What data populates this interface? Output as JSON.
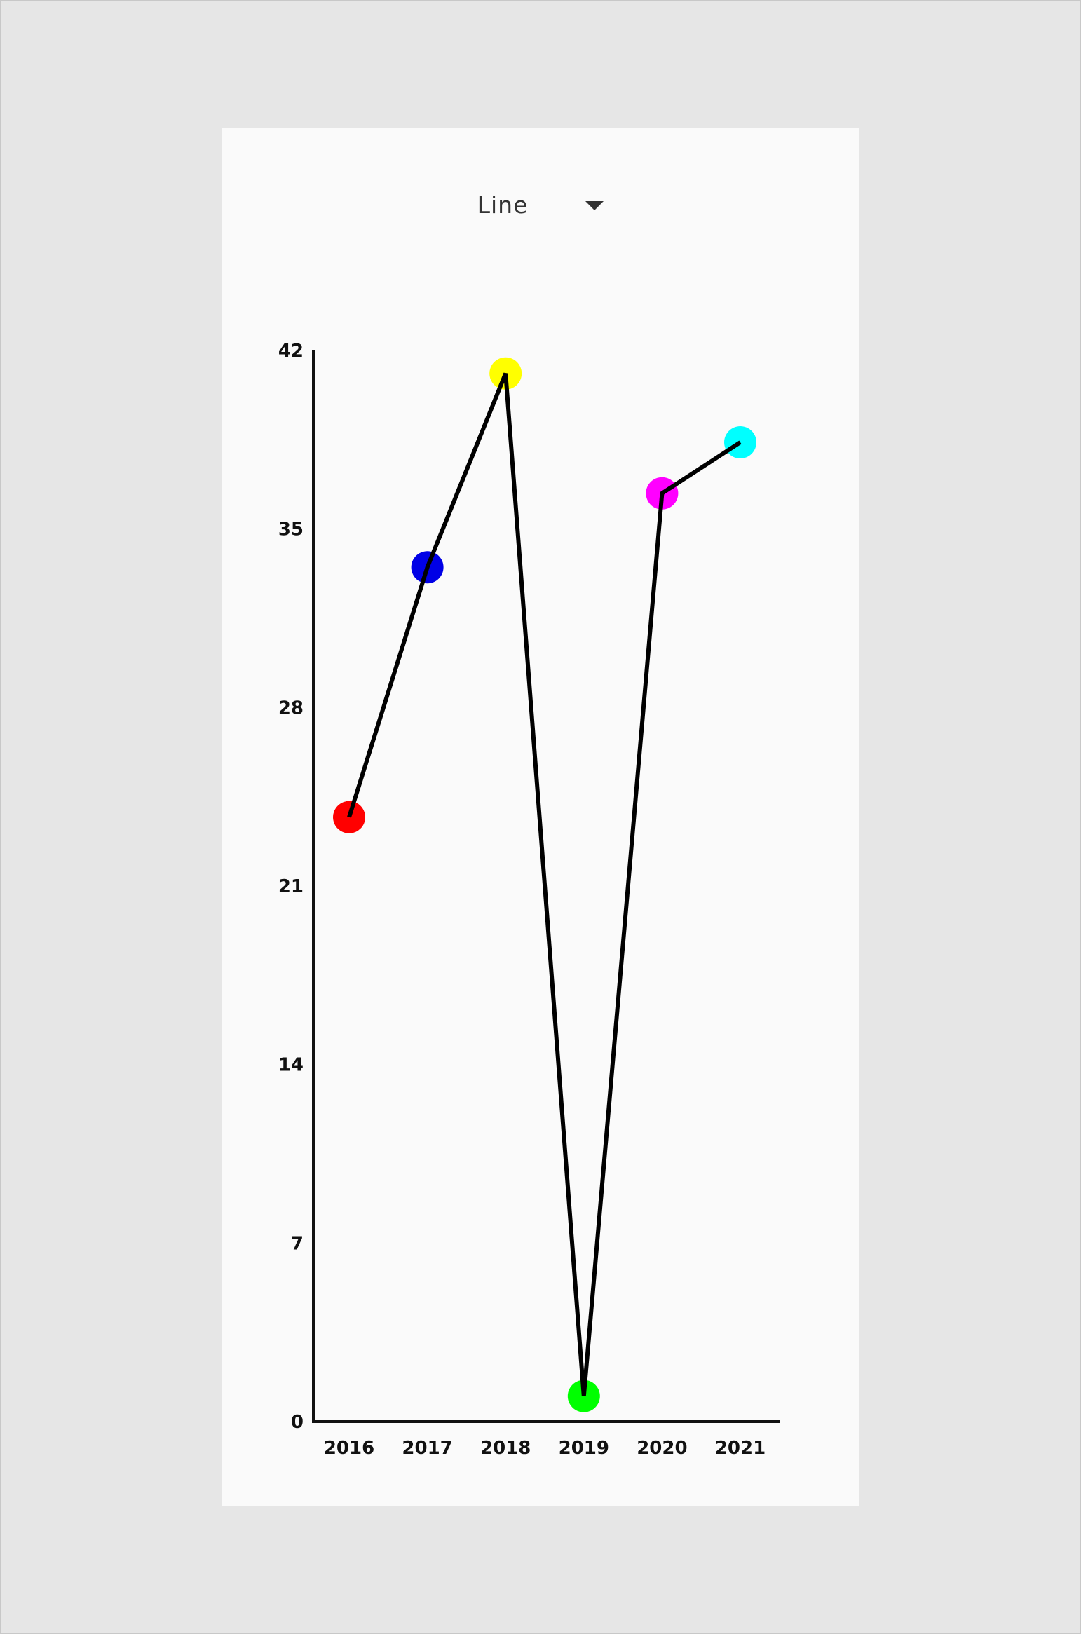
{
  "chart_type_selector": {
    "selected": "Line",
    "icon": "dropdown-arrow-icon"
  },
  "chart_data": {
    "type": "line",
    "categories": [
      "2016",
      "2017",
      "2018",
      "2019",
      "2020",
      "2021"
    ],
    "series": [
      {
        "values": [
          23.7,
          33.5,
          41.1,
          1.0,
          36.4,
          38.4
        ],
        "line_color": "#000000",
        "point_colors": [
          "#ff0000",
          "#0000e6",
          "#ffff00",
          "#00ff00",
          "#ff00ff",
          "#00ffff"
        ]
      }
    ],
    "ylim": [
      0,
      42
    ],
    "yticks": [
      "0",
      "7",
      "14",
      "21",
      "28",
      "35",
      "42"
    ],
    "title": "",
    "xlabel": "",
    "ylabel": "",
    "grid": false
  }
}
